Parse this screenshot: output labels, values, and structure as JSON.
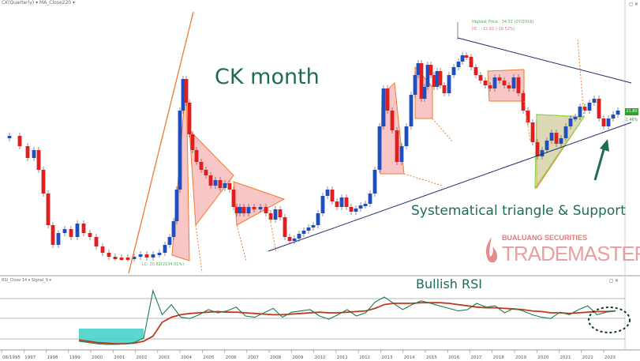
{
  "header": {
    "indicator_label": "CK(Quarterly) ▾  MA_Close220 ▾"
  },
  "rsi_header": {
    "label": "RSI_Close 14 ▾  Signal_9 ▾"
  },
  "title": "CK month",
  "annotation": "Systematical triangle & Support",
  "rsi_annotation": "Bullish RSI",
  "highest_price_label": "Highest Price : 34.51 (07/2016)",
  "hc_label": "HC : -12.82 (-18.52%)",
  "lowest_price_label": "LC: 20.62(2134.61%)",
  "logo": {
    "line1": "BUALUANG SECURITIES",
    "line2": "TRADEMASTER"
  },
  "price_box": {
    "value": "21.80",
    "change": "1.46%"
  },
  "panel_controls": "◻ ✕",
  "colors": {
    "up": "#1f4fbf",
    "down": "#e11d1d",
    "triangle_fill": "#f4a7a7",
    "triangle_edge": "#f07b2d",
    "rsi_line": "#1e7a4d",
    "signal_line": "#c0391c",
    "text_accent": "#1f6b5a",
    "oversold_fill": "#3fd0c8"
  },
  "chart_data": [
    {
      "type": "candlestick",
      "title": "CK month",
      "x_tick_labels": [
        "06/1995",
        "1997",
        "1998",
        "1999",
        "2000",
        "2001",
        "2002",
        "2003",
        "2004",
        "2005",
        "2006",
        "2007",
        "2008",
        "2009",
        "2010",
        "2011",
        "2012",
        "2013",
        "2014",
        "2015",
        "2016",
        "2017",
        "2018",
        "2019",
        "2020",
        "2021",
        "2022",
        "2023"
      ],
      "annotations": [
        "Systematical triangle & Support"
      ],
      "grid": false
    },
    {
      "type": "line",
      "title": "Bullish RSI",
      "series": [
        {
          "name": "RSI_Close 14",
          "values": [
            10,
            8,
            6,
            5,
            5,
            6,
            8,
            15,
            90,
            52,
            68,
            48,
            46,
            52,
            60,
            55,
            58,
            64,
            50,
            48,
            55,
            62,
            48,
            56,
            58,
            60,
            50,
            45,
            52,
            60,
            50,
            55,
            72,
            80,
            70,
            60,
            68,
            74,
            70,
            66,
            62,
            58,
            60,
            70,
            64,
            66,
            55,
            62,
            58,
            52,
            48,
            46,
            56,
            52,
            60,
            66,
            52,
            56,
            58
          ]
        },
        {
          "name": "Signal_9",
          "values": [
            12,
            10,
            8,
            7,
            6,
            6,
            7,
            10,
            18,
            40,
            48,
            52,
            54,
            55,
            56,
            57,
            56,
            56,
            55,
            54,
            53,
            52,
            52,
            53,
            54,
            55,
            56,
            55,
            55,
            56,
            57,
            58,
            62,
            68,
            70,
            70,
            70,
            71,
            71,
            71,
            70,
            68,
            66,
            64,
            63,
            63,
            62,
            61,
            60,
            58,
            57,
            55,
            55,
            54,
            55,
            56,
            57,
            57,
            58
          ]
        }
      ],
      "grid": false
    }
  ]
}
